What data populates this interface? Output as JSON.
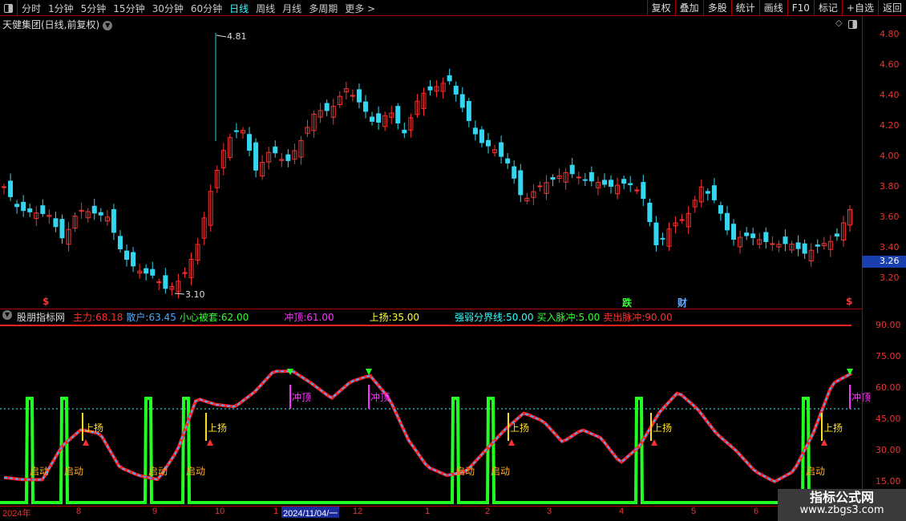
{
  "toolbar": {
    "periods": [
      "分时",
      "1分钟",
      "5分钟",
      "15分钟",
      "30分钟",
      "60分钟",
      "日线",
      "周线",
      "月线",
      "多周期",
      "更多 >"
    ],
    "active_period": "日线",
    "tools": [
      "复权",
      "叠加",
      "多股",
      "统计",
      "画线",
      "F10",
      "标记",
      "+自选",
      "返回"
    ]
  },
  "stock": {
    "title": "天健集团(日线,前复权)",
    "current_price": "3.26",
    "high_label": "4.81",
    "low_label": "3.10"
  },
  "price_axis": [
    "4.80",
    "4.60",
    "4.40",
    "4.20",
    "4.00",
    "3.80",
    "3.60",
    "3.40",
    "3.20"
  ],
  "price_markers": [
    {
      "text": "$",
      "color": "#ff3333"
    },
    {
      "text": "跌",
      "color": "#33ff33"
    },
    {
      "text": "财",
      "color": "#66aaff"
    },
    {
      "text": "$",
      "color": "#ff3333"
    }
  ],
  "indicator": {
    "name": "股朋指标网",
    "values": [
      {
        "label": "主力:",
        "value": "68.18",
        "color": "#ff3030"
      },
      {
        "label": "散户:",
        "value": "63.45",
        "color": "#4aa8ff"
      },
      {
        "label": "小心被套:",
        "value": "62.00",
        "color": "#33ff33"
      },
      {
        "label": "冲顶:",
        "value": "61.00",
        "color": "#ff33ff"
      },
      {
        "label": "上扬:",
        "value": "35.00",
        "color": "#ffff33"
      },
      {
        "label": "强弱分界线:",
        "value": "50.00",
        "color": "#33ffff"
      },
      {
        "label": "买入脉冲:",
        "value": "5.00",
        "color": "#33ff33"
      },
      {
        "label": "卖出脉冲:",
        "value": "90.00",
        "color": "#ff3030"
      }
    ],
    "axis": [
      "90.00",
      "75.00",
      "60.00",
      "45.00",
      "30.00",
      "15.00"
    ],
    "signal_labels": {
      "start": "启动",
      "rise": "上扬",
      "top": "冲顶"
    }
  },
  "x_axis": {
    "labels": [
      "2024年",
      "8",
      "9",
      "10",
      "1",
      "12",
      "1",
      "2",
      "3",
      "4",
      "5",
      "6"
    ],
    "cursor_date": "2024/11/04/一"
  },
  "watermark": {
    "line1": "指标公式网",
    "line2": "www.zbgs3.com"
  },
  "chart_data": [
    {
      "type": "candlestick",
      "ylim": [
        3.1,
        4.85
      ],
      "close_path": [
        3.8,
        3.65,
        3.63,
        3.62,
        3.45,
        3.65,
        3.63,
        3.6,
        3.35,
        3.25,
        3.22,
        3.12,
        3.2,
        3.4,
        3.8,
        4.1,
        4.2,
        3.9,
        4.05,
        3.95,
        4.1,
        4.3,
        4.3,
        4.45,
        4.35,
        4.2,
        4.3,
        4.15,
        4.4,
        4.45,
        4.5,
        4.3,
        4.1,
        4.05,
        3.95,
        3.7,
        3.8,
        3.85,
        3.9,
        3.85,
        3.83,
        3.8,
        3.83,
        3.75,
        3.4,
        3.55,
        3.6,
        3.8,
        3.7,
        3.45,
        3.48,
        3.45,
        3.42,
        3.43,
        3.36,
        3.42,
        3.45,
        3.65
      ]
    },
    {
      "type": "line",
      "ylim": [
        10,
        95
      ],
      "main_path": [
        17,
        16,
        16,
        32,
        40,
        38,
        22,
        18,
        16,
        30,
        55,
        52,
        51,
        58,
        68,
        68,
        62,
        55,
        63,
        66,
        55,
        35,
        22,
        18,
        20,
        30,
        40,
        48,
        44,
        34,
        40,
        36,
        24,
        32,
        48,
        58,
        50,
        38,
        30,
        20,
        15,
        20,
        38,
        62,
        67
      ],
      "strong_weak_line": 50,
      "sell_pulse": 90
    }
  ]
}
